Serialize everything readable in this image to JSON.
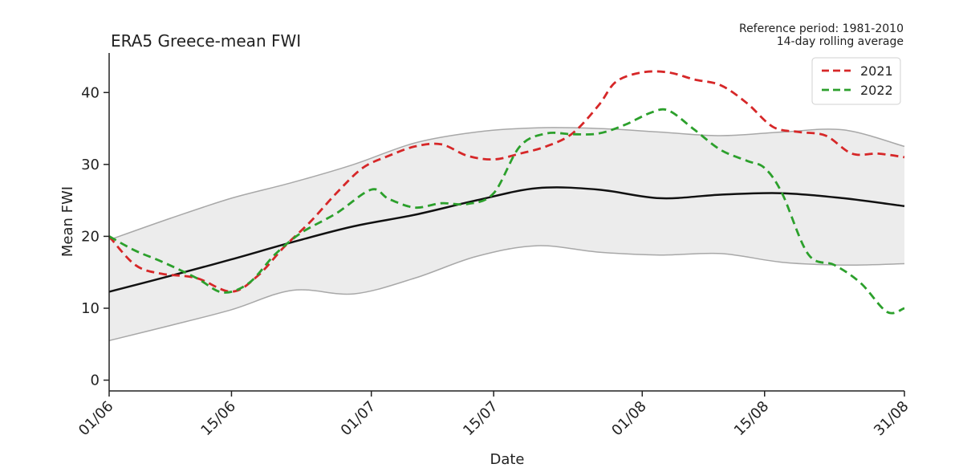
{
  "chart_data": {
    "type": "line",
    "title": "ERA5 Greece-mean FWI",
    "notes": [
      "Reference period: 1981-2010",
      "14-day rolling average"
    ],
    "xlabel": "Date",
    "ylabel": "Mean FWI",
    "x_ticks": [
      "01/06",
      "15/06",
      "01/07",
      "15/07",
      "01/08",
      "15/08",
      "31/08"
    ],
    "x_tick_days": [
      0,
      14,
      30,
      44,
      61,
      75,
      91
    ],
    "x_range_days": [
      0,
      91
    ],
    "ylim": [
      -1.5,
      45.5
    ],
    "yticks": [
      0,
      10,
      20,
      30,
      40
    ],
    "grid": false,
    "legend_position": "top-right",
    "climatology": {
      "days": [
        0,
        7,
        14,
        21,
        28,
        35,
        42,
        49,
        56,
        63,
        70,
        77,
        84,
        91
      ],
      "mean": [
        12.3,
        14.5,
        16.8,
        19.2,
        21.4,
        23.0,
        25.0,
        26.7,
        26.5,
        25.3,
        25.8,
        26.0,
        25.3,
        24.2
      ],
      "lower": [
        5.5,
        7.6,
        9.8,
        12.5,
        12.0,
        14.2,
        17.2,
        18.7,
        17.8,
        17.4,
        17.6,
        16.4,
        16.0,
        16.2
      ],
      "upper": [
        19.5,
        22.5,
        25.3,
        27.5,
        30.0,
        33.0,
        34.5,
        35.1,
        35.0,
        34.5,
        34.0,
        34.5,
        34.8,
        32.5
      ],
      "line_color": "#111111",
      "band_color": "#ececec"
    },
    "series": [
      {
        "name": "2021",
        "color": "#d62728",
        "days": [
          0,
          3,
          6,
          10,
          14,
          17,
          20,
          23,
          26,
          29,
          32,
          35,
          38,
          41,
          44,
          47,
          50,
          53,
          56,
          58,
          61,
          64,
          67,
          70,
          73,
          76,
          79,
          82,
          85,
          88,
          91
        ],
        "values": [
          20,
          16,
          14.8,
          14.2,
          12.3,
          14.5,
          18.5,
          22,
          26,
          29.5,
          31.2,
          32.5,
          32.8,
          31.2,
          30.7,
          31.5,
          32.5,
          34.3,
          38.2,
          41.5,
          42.8,
          42.8,
          41.8,
          41,
          38.5,
          35.2,
          34.5,
          34.0,
          31.5,
          31.5,
          31.0
        ]
      },
      {
        "name": "2022",
        "color": "#2ca02c",
        "days": [
          0,
          3,
          6,
          10,
          13,
          16,
          19,
          22,
          26,
          30,
          32,
          35,
          38,
          41,
          44,
          47,
          50,
          53,
          56,
          59,
          62,
          64,
          67,
          70,
          73,
          75,
          77,
          80,
          83,
          86,
          89,
          91
        ],
        "values": [
          20,
          18,
          16.5,
          14.2,
          12.2,
          13.5,
          17.5,
          20.5,
          23.2,
          26.5,
          25.2,
          24.0,
          24.6,
          24.5,
          26.0,
          32.5,
          34.3,
          34.2,
          34.3,
          35.5,
          37.2,
          37.5,
          34.8,
          32.0,
          30.5,
          29.5,
          26.0,
          17.5,
          16.0,
          13.5,
          9.5,
          10.0
        ]
      }
    ]
  }
}
